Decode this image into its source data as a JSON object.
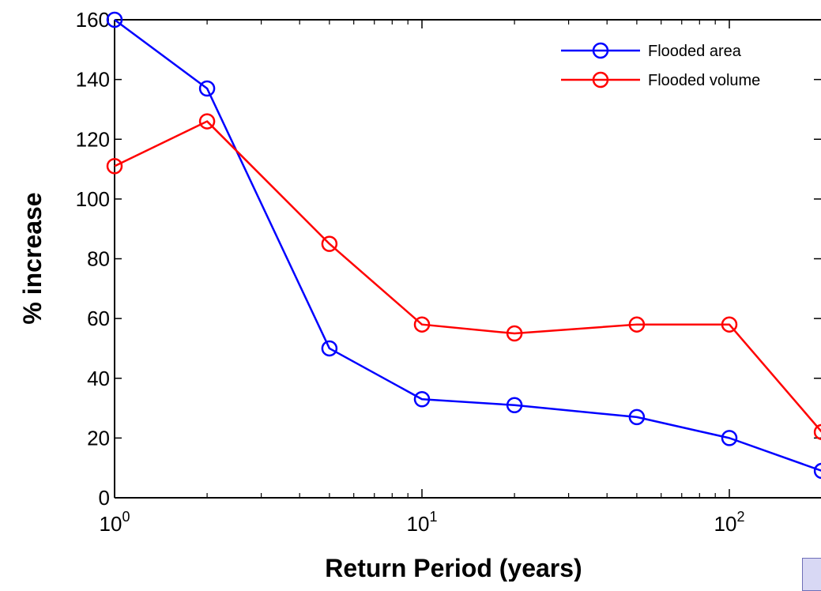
{
  "chart_data": {
    "type": "line",
    "title": "",
    "xlabel": "Return Period (years)",
    "ylabel": "% increase",
    "xscale": "log",
    "xlim": [
      1,
      200
    ],
    "ylim": [
      0,
      160
    ],
    "x": [
      1,
      2,
      5,
      10,
      20,
      50,
      100,
      200
    ],
    "x_ticks": [
      {
        "value": 1,
        "base": "10",
        "exp": "0"
      },
      {
        "value": 10,
        "base": "10",
        "exp": "1"
      },
      {
        "value": 100,
        "base": "10",
        "exp": "2"
      }
    ],
    "y_ticks": [
      0,
      20,
      40,
      60,
      80,
      100,
      120,
      140,
      160
    ],
    "grid": false,
    "legend_position": "top-right",
    "series": [
      {
        "name": "Flooded area",
        "color": "#0000ff",
        "marker": "circle",
        "values": [
          160,
          137,
          50,
          33,
          31,
          27,
          20,
          9
        ]
      },
      {
        "name": "Flooded volume",
        "color": "#ff0000",
        "marker": "circle",
        "values": [
          111,
          126,
          85,
          58,
          55,
          58,
          58,
          22
        ]
      }
    ]
  }
}
